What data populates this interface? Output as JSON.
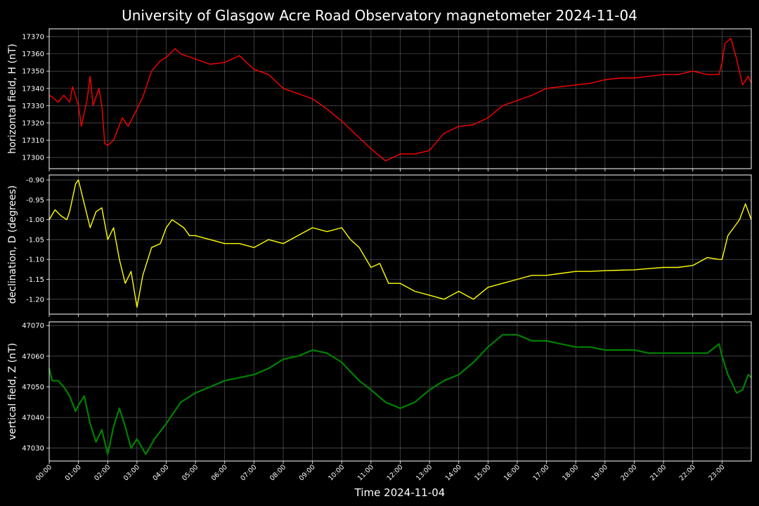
{
  "figure": {
    "title": "University of Glasgow Acre Road Observatory magnetometer 2024-11-04",
    "background": "#000000",
    "foreground": "#ffffff",
    "grid_color": "#808080"
  },
  "chart_data": [
    {
      "type": "line",
      "panel": "H",
      "ylabel": "horizontal field, H (nT)",
      "color": "#ff0000",
      "xlim": [
        0,
        24
      ],
      "ylim": [
        17293.5,
        17374.5
      ],
      "yticks": [
        17300,
        17310,
        17320,
        17330,
        17340,
        17350,
        17360,
        17370
      ],
      "grid": true,
      "x": [
        0.0,
        0.1,
        0.3,
        0.5,
        0.7,
        0.8,
        1.0,
        1.1,
        1.3,
        1.4,
        1.5,
        1.7,
        1.8,
        1.9,
        2.0,
        2.2,
        2.5,
        2.7,
        3.0,
        3.2,
        3.5,
        3.8,
        4.0,
        4.3,
        4.5,
        5.0,
        5.5,
        6.0,
        6.5,
        7.0,
        7.5,
        8.0,
        8.5,
        9.0,
        9.5,
        10.0,
        10.5,
        11.0,
        11.5,
        12.0,
        12.5,
        13.0,
        13.5,
        14.0,
        14.5,
        15.0,
        15.5,
        16.0,
        16.5,
        17.0,
        17.5,
        18.0,
        18.5,
        19.0,
        19.5,
        20.0,
        20.5,
        21.0,
        21.5,
        22.0,
        22.5,
        22.9,
        23.0,
        23.1,
        23.3,
        23.5,
        23.7,
        23.9,
        24.0
      ],
      "y": [
        17336,
        17335,
        17332,
        17336,
        17332,
        17341,
        17330,
        17318,
        17334,
        17347,
        17330,
        17340,
        17330,
        17308,
        17307,
        17310,
        17323,
        17318,
        17328,
        17335,
        17350,
        17356,
        17358,
        17363,
        17360,
        17357,
        17354,
        17355,
        17359,
        17351,
        17348,
        17340,
        17337,
        17334,
        17328,
        17321,
        17313,
        17305,
        17298,
        17302,
        17302,
        17304,
        17314,
        17318,
        17319,
        17323,
        17330,
        17333,
        17336,
        17340,
        17341,
        17342,
        17343,
        17345,
        17346,
        17346,
        17347,
        17348,
        17348,
        17350,
        17348,
        17348,
        17355,
        17366,
        17369,
        17357,
        17342,
        17347,
        17343
      ]
    },
    {
      "type": "line",
      "panel": "D",
      "ylabel": "declination, D (degrees)",
      "color": "#ffff00",
      "xlim": [
        0,
        24
      ],
      "ylim": [
        -1.2375,
        -0.8875
      ],
      "yticks": [
        -0.9,
        -0.95,
        -1.0,
        -1.05,
        -1.1,
        -1.15,
        -1.2
      ],
      "grid": true,
      "x": [
        0.0,
        0.2,
        0.4,
        0.6,
        0.7,
        0.9,
        1.0,
        1.2,
        1.4,
        1.6,
        1.8,
        1.9,
        2.0,
        2.2,
        2.4,
        2.6,
        2.8,
        3.0,
        3.2,
        3.5,
        3.8,
        4.0,
        4.2,
        4.4,
        4.6,
        4.8,
        5.0,
        5.5,
        6.0,
        6.5,
        7.0,
        7.5,
        8.0,
        8.5,
        9.0,
        9.5,
        10.0,
        10.3,
        10.6,
        11.0,
        11.3,
        11.6,
        12.0,
        12.5,
        13.0,
        13.5,
        14.0,
        14.5,
        15.0,
        15.5,
        16.0,
        16.5,
        17.0,
        17.5,
        18.0,
        18.5,
        19.0,
        19.5,
        20.0,
        20.5,
        21.0,
        21.5,
        22.0,
        22.5,
        22.9,
        23.0,
        23.2,
        23.4,
        23.6,
        23.8,
        24.0
      ],
      "y": [
        -1.0,
        -0.975,
        -0.99,
        -1.0,
        -0.98,
        -0.91,
        -0.9,
        -0.96,
        -1.02,
        -0.98,
        -0.97,
        -1.01,
        -1.05,
        -1.02,
        -1.1,
        -1.16,
        -1.13,
        -1.22,
        -1.14,
        -1.07,
        -1.06,
        -1.02,
        -1.0,
        -1.01,
        -1.02,
        -1.04,
        -1.04,
        -1.05,
        -1.06,
        -1.06,
        -1.07,
        -1.05,
        -1.06,
        -1.04,
        -1.02,
        -1.03,
        -1.02,
        -1.05,
        -1.07,
        -1.12,
        -1.11,
        -1.16,
        -1.16,
        -1.18,
        -1.19,
        -1.2,
        -1.18,
        -1.2,
        -1.17,
        -1.16,
        -1.15,
        -1.14,
        -1.14,
        -1.135,
        -1.13,
        -1.13,
        -1.128,
        -1.127,
        -1.126,
        -1.123,
        -1.12,
        -1.12,
        -1.115,
        -1.095,
        -1.1,
        -1.1,
        -1.04,
        -1.02,
        -1.0,
        -0.96,
        -1.0
      ]
    },
    {
      "type": "line",
      "panel": "Z",
      "ylabel": "vertical field, Z (nT)",
      "color": "#008000",
      "xlim": [
        0,
        24
      ],
      "ylim": [
        47025.8,
        47071.2
      ],
      "yticks": [
        47030,
        47040,
        47050,
        47060,
        47070
      ],
      "grid": true,
      "x": [
        0.0,
        0.1,
        0.3,
        0.5,
        0.7,
        0.9,
        1.0,
        1.2,
        1.4,
        1.6,
        1.8,
        2.0,
        2.2,
        2.4,
        2.6,
        2.8,
        3.0,
        3.3,
        3.6,
        4.0,
        4.5,
        5.0,
        5.5,
        6.0,
        6.5,
        7.0,
        7.5,
        8.0,
        8.5,
        9.0,
        9.5,
        10.0,
        10.3,
        10.6,
        11.0,
        11.5,
        12.0,
        12.5,
        13.0,
        13.5,
        14.0,
        14.5,
        15.0,
        15.5,
        16.0,
        16.5,
        17.0,
        17.5,
        18.0,
        18.5,
        19.0,
        19.5,
        20.0,
        20.5,
        21.0,
        21.5,
        22.0,
        22.5,
        22.9,
        23.0,
        23.2,
        23.5,
        23.7,
        23.9,
        24.0
      ],
      "y": [
        47056,
        47052,
        47052,
        47050,
        47047,
        47042,
        47044,
        47047,
        47038,
        47032,
        47036,
        47028,
        47037,
        47043,
        47037,
        47030,
        47033,
        47028,
        47033,
        47038,
        47045,
        47048,
        47050,
        47052,
        47053,
        47054,
        47056,
        47059,
        47060,
        47062,
        47061,
        47058,
        47055,
        47052,
        47049,
        47045,
        47043,
        47045,
        47049,
        47052,
        47054,
        47058,
        47063,
        47067,
        47067,
        47065,
        47065,
        47064,
        47063,
        47063,
        47062,
        47062,
        47062,
        47061,
        47061,
        47061,
        47061,
        47061,
        47064,
        47060,
        47054,
        47048,
        47049,
        47054,
        47053
      ]
    }
  ],
  "xaxis": {
    "label": "Time 2024-11-04",
    "ticks": [
      "00:00",
      "01:00",
      "02:00",
      "03:00",
      "04:00",
      "05:00",
      "06:00",
      "07:00",
      "08:00",
      "09:00",
      "10:00",
      "11:00",
      "12:00",
      "13:00",
      "14:00",
      "15:00",
      "16:00",
      "17:00",
      "18:00",
      "19:00",
      "20:00",
      "21:00",
      "22:00",
      "23:00"
    ]
  }
}
